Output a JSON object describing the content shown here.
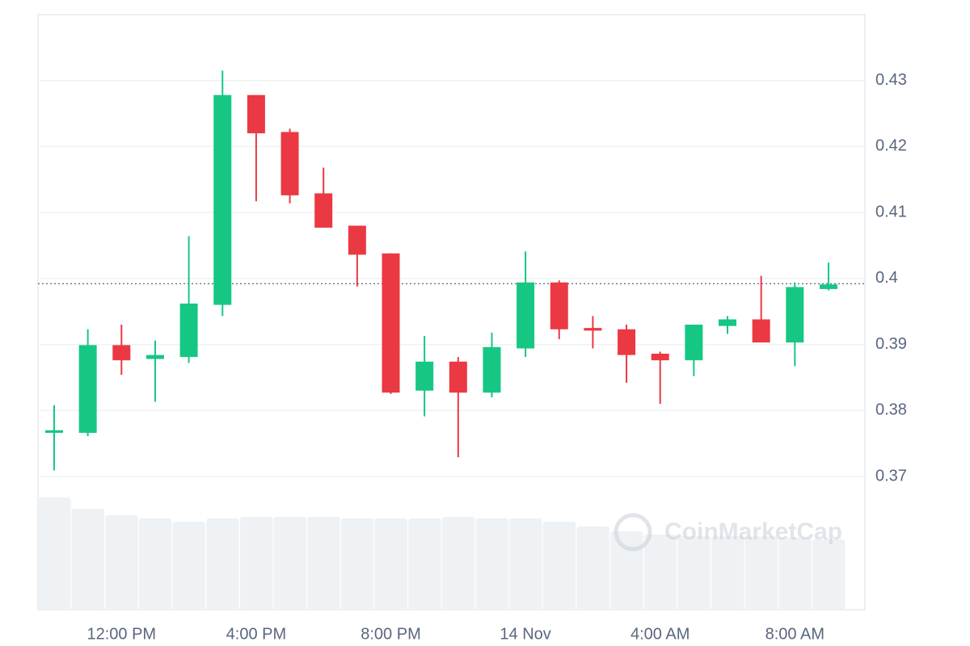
{
  "chart_data": {
    "type": "candlestick",
    "categories": [
      null,
      null,
      "12:00 PM",
      null,
      null,
      null,
      "4:00 PM",
      null,
      null,
      null,
      "8:00 PM",
      null,
      null,
      null,
      "14 Nov",
      null,
      null,
      null,
      "4:00 AM",
      null,
      null,
      null,
      "8:00 AM",
      null
    ],
    "open": [
      0.3766,
      0.3766,
      0.3899,
      0.3878,
      0.3881,
      0.396,
      0.4278,
      0.4222,
      0.4129,
      0.408,
      0.4038,
      0.383,
      0.3874,
      0.3827,
      0.3894,
      0.3994,
      0.3925,
      0.3923,
      0.3886,
      0.3876,
      0.3928,
      0.3938,
      0.3903,
      0.3984
    ],
    "high": [
      0.3808,
      0.3923,
      0.393,
      0.3906,
      0.4064,
      0.4315,
      0.4278,
      0.4227,
      0.4168,
      0.408,
      0.4038,
      0.3913,
      0.3881,
      0.3918,
      0.4041,
      0.3997,
      0.3943,
      0.393,
      0.3889,
      0.393,
      0.3943,
      0.4004,
      0.3994,
      0.4024
    ],
    "low": [
      0.3709,
      0.3761,
      0.3854,
      0.3813,
      0.3872,
      0.3943,
      0.4117,
      0.4114,
      0.4077,
      0.3988,
      0.3825,
      0.3791,
      0.3729,
      0.382,
      0.3881,
      0.3908,
      0.3894,
      0.3842,
      0.381,
      0.3852,
      0.3916,
      0.3903,
      0.3867,
      0.3982
    ],
    "close": [
      0.377,
      0.3899,
      0.3876,
      0.3884,
      0.3962,
      0.4278,
      0.422,
      0.4126,
      0.4077,
      0.4036,
      0.3827,
      0.3874,
      0.3827,
      0.3896,
      0.3994,
      0.3923,
      0.3921,
      0.3884,
      0.3876,
      0.393,
      0.3938,
      0.3903,
      0.3987,
      0.3991
    ],
    "volume": [
      139,
      125,
      117,
      113,
      109,
      113,
      115,
      115,
      115,
      113,
      113,
      113,
      115,
      113,
      113,
      109,
      103,
      97,
      93,
      91,
      91,
      91,
      89,
      87
    ],
    "last_price": 0.3992,
    "up_color": "#16c784",
    "down_color": "#ea3943",
    "volume_color": "#eff2f5",
    "ylim": [
      0.37,
      0.44
    ],
    "yticks": [
      0.37,
      0.38,
      0.39,
      0.4,
      0.41,
      0.42,
      0.43
    ],
    "grid": true,
    "watermark": "CoinMarketCap"
  }
}
